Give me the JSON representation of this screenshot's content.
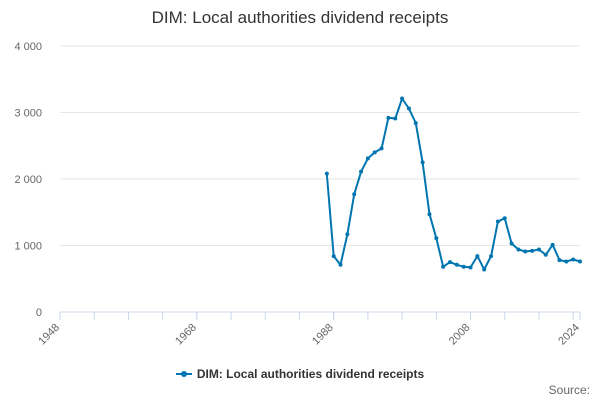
{
  "title": "DIM: Local authorities dividend receipts",
  "source_label": "Source:",
  "colors": {
    "series": "#0075b0",
    "grid": "#e6e6e6",
    "axis": "#ccd6eb",
    "text": "#333333"
  },
  "chart_data": {
    "type": "line",
    "title": "DIM: Local authorities dividend receipts",
    "xlabel": "",
    "ylabel": "",
    "xlim": [
      1948,
      2024
    ],
    "ylim": [
      0,
      4000
    ],
    "x_ticks": [
      {
        "value": 1948,
        "label": "1948"
      },
      {
        "value": 1968,
        "label": "1968"
      },
      {
        "value": 1988,
        "label": "1988"
      },
      {
        "value": 2008,
        "label": "2008"
      },
      {
        "value": 2024,
        "label": "2024"
      }
    ],
    "y_ticks": [
      {
        "value": 0,
        "label": "0"
      },
      {
        "value": 1000,
        "label": "1 000"
      },
      {
        "value": 2000,
        "label": "2 000"
      },
      {
        "value": 3000,
        "label": "3 000"
      },
      {
        "value": 4000,
        "label": "4 000"
      }
    ],
    "grid": true,
    "legend_position": "bottom",
    "series": [
      {
        "name": "DIM: Local authorities dividend receipts",
        "x": [
          1987,
          1988,
          1989,
          1990,
          1991,
          1992,
          1993,
          1994,
          1995,
          1996,
          1997,
          1998,
          1999,
          2000,
          2001,
          2002,
          2003,
          2004,
          2005,
          2006,
          2007,
          2008,
          2009,
          2010,
          2011,
          2012,
          2013,
          2014,
          2015,
          2016,
          2017,
          2018,
          2019,
          2020,
          2021,
          2022,
          2023,
          2024
        ],
        "values": [
          2080,
          840,
          710,
          1170,
          1770,
          2110,
          2310,
          2400,
          2460,
          2920,
          2910,
          3210,
          3060,
          2840,
          2250,
          1470,
          1110,
          680,
          750,
          710,
          680,
          670,
          840,
          640,
          840,
          1360,
          1410,
          1030,
          940,
          910,
          920,
          940,
          860,
          1010,
          780,
          760,
          790,
          760
        ]
      }
    ]
  }
}
